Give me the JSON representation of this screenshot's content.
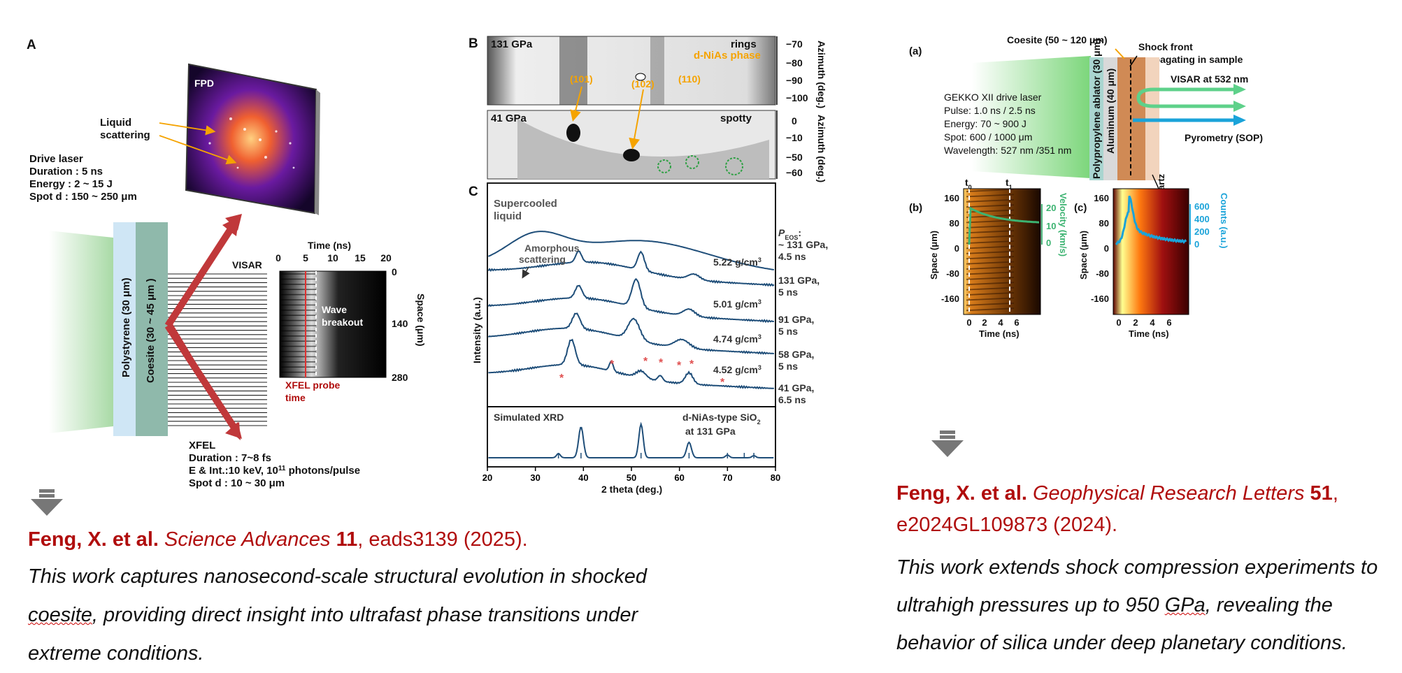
{
  "left": {
    "panel_a_label": "A",
    "panel_b_label": "B",
    "panel_c_label": "C",
    "fpd": "FPD",
    "liquid1": "Liquid",
    "liquid2": "scattering",
    "drive_title": "Drive laser",
    "drive_duration": "Duration : 5 ns",
    "drive_energy": "Energy : 2 ~ 15 J",
    "drive_spot": "Spot d : 150 ~ 250 μm",
    "polystyrene": "Polystyrene (30 μm)",
    "coesite": "Coesite (30 ~ 45 μm )",
    "visar": "VISAR",
    "time_ns": "Time (ns)",
    "time_ticks": [
      "0",
      "5",
      "10",
      "15",
      "20"
    ],
    "space_ticks": [
      "0",
      "140",
      "280"
    ],
    "space_um": "Space (μm)",
    "wave1": "Wave",
    "wave2": "breakout",
    "xfel_probe1": "XFEL probe",
    "xfel_probe2": "time",
    "xfel_title": "XFEL",
    "xfel_duration": "Duration : 7~8 fs",
    "xfel_energy": "E & Int.:10 keV, 10",
    "xfel_energy_exp": "11",
    "xfel_energy_tail": " photons/pulse",
    "xfel_spot": "Spot d : 10 ~ 30 μm",
    "b_top_pressure": "131 GPa",
    "b_top_rings": "rings",
    "b_top_phase": "d-NiAs phase",
    "b_bot_pressure": "41 GPa",
    "b_bot_spotty": "spotty",
    "miller": [
      "(101)",
      "(102)",
      "(110)"
    ],
    "azimuth_top_ticks": [
      "−70",
      "−80",
      "−90",
      "−100"
    ],
    "azimuth_bot_ticks": [
      "0",
      "−10",
      "−50",
      "−60"
    ],
    "azimuth_label": "Azimuth (deg.)",
    "c_supercooled1": "Supercooled",
    "c_supercooled2": "liquid",
    "c_amorph1": "Amorphous",
    "c_amorph2": "scattering",
    "c_ylabel": "Intensity (a.u.)",
    "c_xlabel": "2 theta (deg.)",
    "c_xticks": [
      "20",
      "30",
      "40",
      "50",
      "60",
      "70",
      "80"
    ],
    "c_peos": "P",
    "c_peos_sub": "EOS",
    "c_peos_tail": ":",
    "c_right_labels": [
      "~ 131 GPa,",
      "4.5 ns",
      "131 GPa,",
      "5 ns",
      "91 GPa,",
      "5 ns",
      "58 GPa,",
      "5 ns",
      "41 GPa,",
      "6.5 ns"
    ],
    "c_densities": [
      "5.22 g/cm",
      "5.01 g/cm",
      "4.74 g/cm",
      "4.52 g/cm"
    ],
    "c_density_exp": "3",
    "c_sim": "Simulated XRD",
    "c_sim_right1": "d-NiAs-type SiO",
    "c_sim_right_sub": "2",
    "c_sim_right2": "at 131 GPa"
  },
  "right": {
    "panel_a": "(a)",
    "panel_b": "(b)",
    "panel_c": "(c)",
    "coesite": "Coesite (50 ~ 120 μm)",
    "shock1": "Shock front",
    "shock2": "propagating in sample",
    "visar": "VISAR at 532 nm",
    "pyrometry": "Pyrometry (SOP)",
    "gekko": "GEKKO XII drive laser",
    "pulse": "Pulse: 1.0 ns / 2.5 ns",
    "energy": "Energy: 70 ~ 900 J",
    "spot": "Spot: 600 / 1000 μm",
    "wavelength": "Wavelength: 527 nm /351 nm",
    "ablator": "Polypropylene ablator (30 μm)",
    "aluminum": "Aluminum (40 μm)",
    "quartz": "Quartz",
    "t0": "t",
    "t0_sub": "0",
    "t1": "t",
    "t1_sub": "1",
    "space_ticks": [
      "160",
      "80",
      "0",
      "-80",
      "-160"
    ],
    "time_ticks": [
      "0",
      "2",
      "4",
      "6"
    ],
    "space_label": "Space (μm)",
    "time_label": "Time (ns)",
    "velocity_ticks": [
      "20",
      "10",
      "0"
    ],
    "velocity_label": "Velocity (km/s)",
    "counts_ticks": [
      "600",
      "400",
      "200",
      "0"
    ],
    "counts_label": "Counts (a.u.)"
  },
  "citations": {
    "left_authors": "Feng, X. et al.",
    "left_journal": "Science Advances",
    "left_volume": "11",
    "left_rest": ", eads3139 (2025).",
    "left_desc_1": "This work captures nanosecond-scale structural evolution in shocked",
    "left_desc_2a": "coesite",
    "left_desc_2b": ", providing direct insight into ultrafast phase transitions under",
    "left_desc_3": "extreme conditions.",
    "right_authors": "Feng, X. et al.",
    "right_journal": "Geophysical Research Letters",
    "right_volume": "51",
    "right_rest": ",",
    "right_line2": "e2024GL109873 (2024).",
    "right_desc_1": "This work extends shock compression experiments to",
    "right_desc_2a": "ultrahigh pressures up to 950 ",
    "right_desc_2b": "GPa",
    "right_desc_2c": ", revealing the",
    "right_desc_3": "behavior of silica under deep planetary conditions."
  },
  "colors": {
    "accent_red": "#b00d0d",
    "curve_blue": "#1f4e79",
    "velocity_green": "#3cb371",
    "counts_cyan": "#1aa3d9",
    "orange": "#f5a300"
  }
}
